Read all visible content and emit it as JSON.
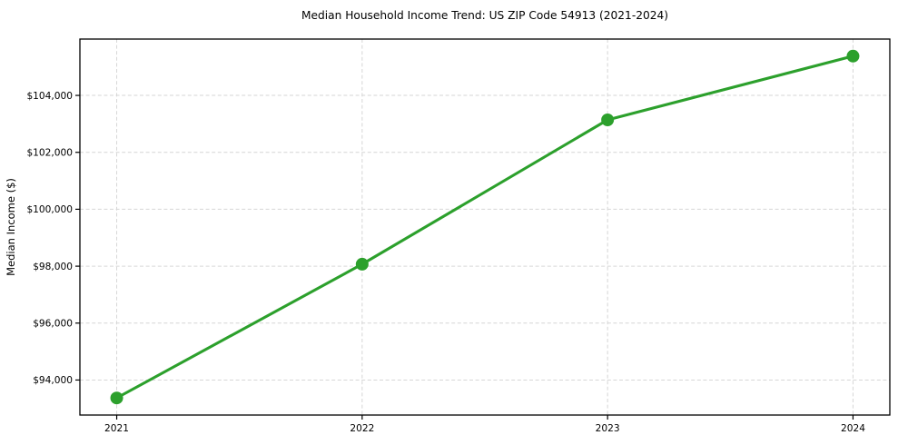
{
  "figure": {
    "background": "#ffffff"
  },
  "chart_data": {
    "type": "line",
    "title": "Median Household Income Trend: US ZIP Code 54913 (2021-2024)",
    "xlabel": "",
    "ylabel": "Median Income ($)",
    "categories": [
      "2021",
      "2022",
      "2023",
      "2024"
    ],
    "series": [
      {
        "name": "Median Household Income",
        "values": [
          93370,
          98070,
          103140,
          105380
        ],
        "color": "#2ca02c"
      }
    ],
    "ylim": [
      92770,
      105980
    ],
    "ytick_values": [
      94000,
      96000,
      98000,
      100000,
      102000,
      104000
    ],
    "ytick_labels": [
      "$94,000",
      "$96,000",
      "$98,000",
      "$100,000",
      "$102,000",
      "$104,000"
    ],
    "xtick_labels": [
      "2021",
      "2022",
      "2023",
      "2024"
    ],
    "grid": true,
    "grid_color": "#d6d6d6",
    "grid_style": "dashed",
    "legend_position": "none",
    "axis_color": "#000000",
    "text_color": "#000000"
  }
}
